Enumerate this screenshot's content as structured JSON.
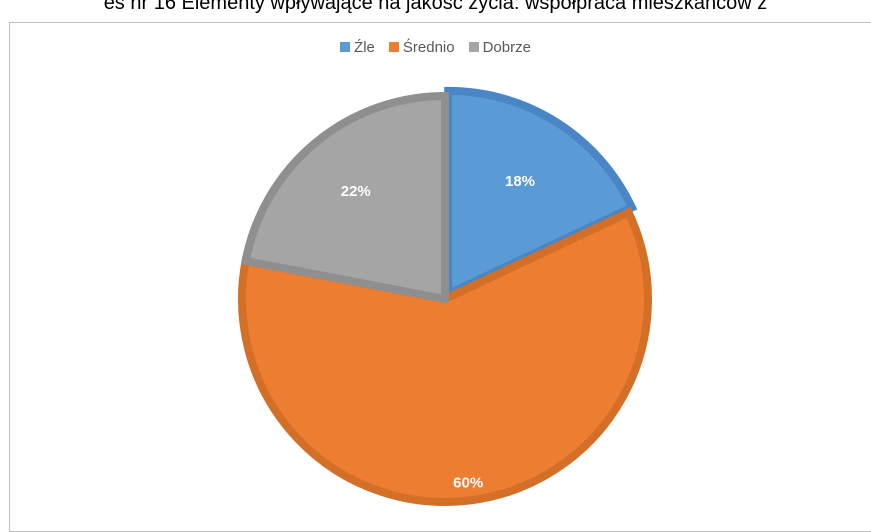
{
  "header": {
    "title": "es nr 16 Elementy wpływające na jakość życia: współpraca mieszkańców z"
  },
  "chart_data": {
    "type": "pie",
    "title": "",
    "categories": [
      "Źle",
      "Średnio",
      "Dobrze"
    ],
    "values": [
      18,
      60,
      22
    ],
    "labels": [
      "18%",
      "60%",
      "22%"
    ],
    "colors": [
      "#5b9bd5",
      "#ed7d31",
      "#a5a5a5"
    ],
    "border_colors": [
      "#4a86c5",
      "#d46f28",
      "#8f8f8f"
    ],
    "legend_position": "top"
  }
}
